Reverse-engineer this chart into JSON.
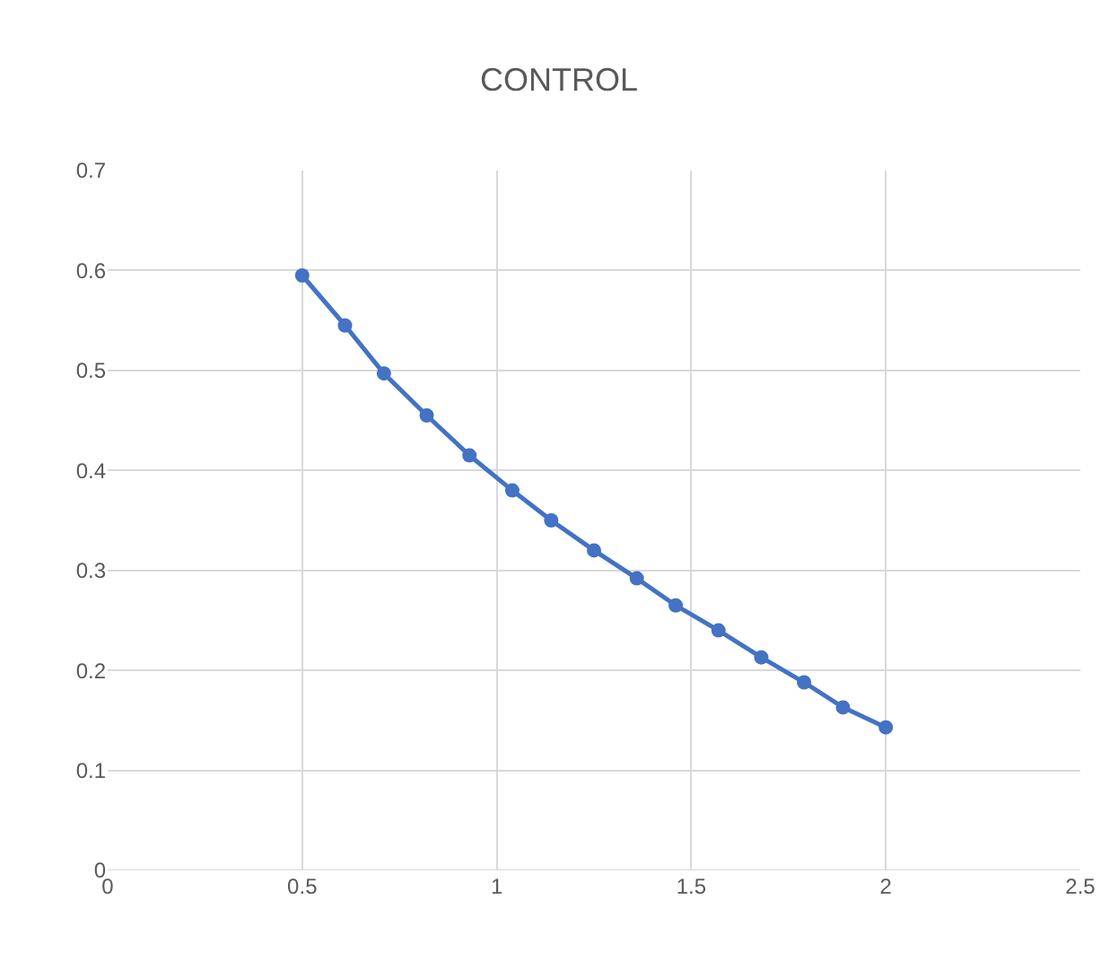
{
  "chart_data": {
    "type": "line",
    "title": "CONTROL",
    "x": [
      0.5,
      0.61,
      0.71,
      0.82,
      0.93,
      1.04,
      1.14,
      1.25,
      1.36,
      1.46,
      1.57,
      1.68,
      1.79,
      1.89,
      2.0
    ],
    "series": [
      {
        "color": "#4472c4",
        "values": [
          0.595,
          0.545,
          0.497,
          0.455,
          0.415,
          0.38,
          0.35,
          0.32,
          0.292,
          0.265,
          0.24,
          0.213,
          0.188,
          0.163,
          0.143
        ]
      }
    ],
    "xlim": [
      0,
      2.5
    ],
    "xticks": [
      0,
      0.5,
      1,
      1.5,
      2,
      2.5
    ],
    "ylim": [
      0,
      0.7
    ],
    "yticks": [
      0,
      0.1,
      0.2,
      0.3,
      0.4,
      0.5,
      0.6,
      0.7
    ],
    "grid": true,
    "marker": "circle",
    "line_style": "solid"
  }
}
